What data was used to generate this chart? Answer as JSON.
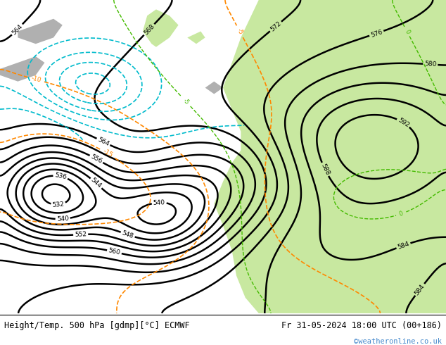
{
  "title_left": "Height/Temp. 500 hPa [gdmp][°C] ECMWF",
  "title_right": "Fr 31-05-2024 18:00 UTC (00+186)",
  "watermark": "©weatheronline.co.uk",
  "watermark_color": "#4488cc",
  "bg_sea_color": "#c8c8c8",
  "land_green_color": "#c8e8a0",
  "land_grey_color": "#b0b0b0",
  "bottom_bar_color": "#ffffff",
  "title_fontsize": 8.5,
  "geop_contour_color": "black",
  "geop_linewidth": 1.8,
  "temp_contour_color": "#ff8800",
  "temp_linewidth": 1.2,
  "cyan_contour_color": "#00bbcc",
  "cyan_linewidth": 1.2,
  "green_contour_color": "#44bb00",
  "green_linewidth": 1.2
}
